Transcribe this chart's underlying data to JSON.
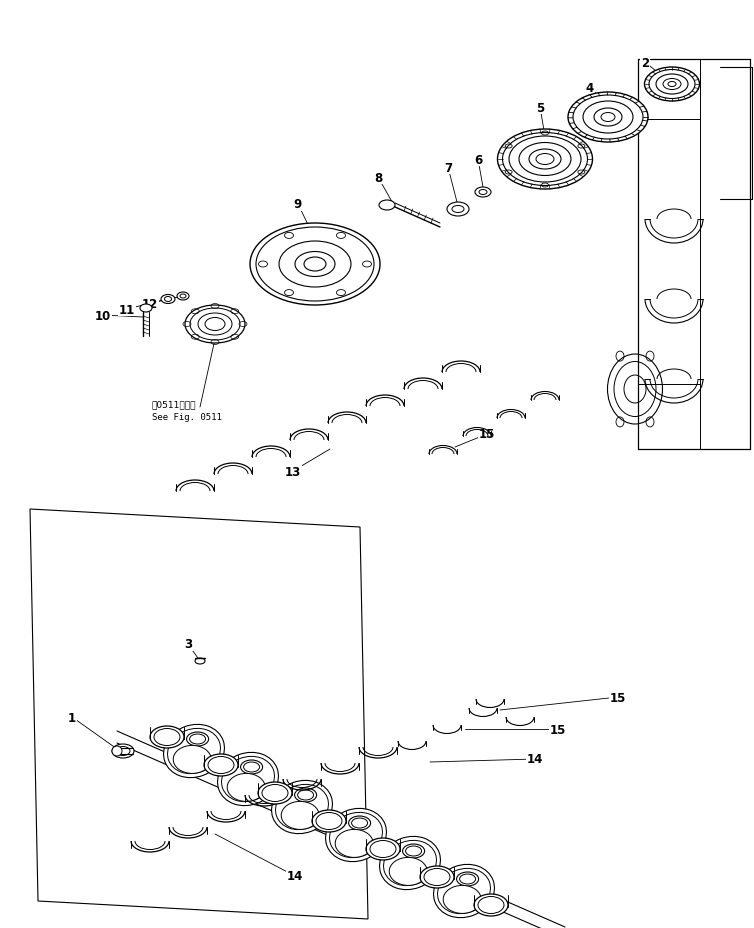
{
  "background_color": "#ffffff",
  "line_color": "#000000",
  "figure_width": 7.54,
  "figure_height": 9.29,
  "dpi": 100,
  "annotation_jp": "図0511図参照",
  "annotation_en": "See Fig. 0511"
}
